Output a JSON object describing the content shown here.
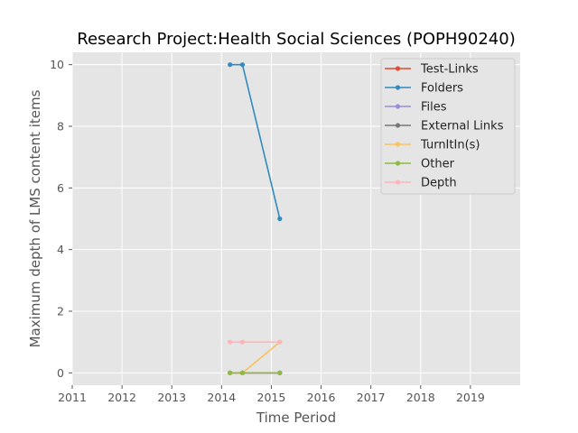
{
  "chart_data": {
    "type": "line",
    "title": "Research Project:Health Social Sciences (POPH90240)",
    "xlabel": "Time Period",
    "ylabel": "Maximum depth of LMS content items",
    "xlim": [
      2011,
      2020
    ],
    "ylim": [
      -0.4,
      10.4
    ],
    "xticks": [
      2011,
      2012,
      2013,
      2014,
      2015,
      2016,
      2017,
      2018,
      2019
    ],
    "yticks": [
      0,
      2,
      4,
      6,
      8,
      10
    ],
    "grid": true,
    "legend_position": "top-right",
    "x": [
      2014.17,
      2014.42,
      2015.17
    ],
    "series": [
      {
        "name": "Test-Links",
        "color": "#e24a33",
        "values": [
          0,
          0,
          0
        ]
      },
      {
        "name": "Folders",
        "color": "#348abd",
        "values": [
          10,
          10,
          5
        ]
      },
      {
        "name": "Files",
        "color": "#988ed5",
        "values": [
          0,
          0,
          0
        ]
      },
      {
        "name": "External Links",
        "color": "#777777",
        "values": [
          0,
          0,
          0
        ]
      },
      {
        "name": "TurnItIn(s)",
        "color": "#fbc15e",
        "values": [
          0,
          0,
          1
        ]
      },
      {
        "name": "Other",
        "color": "#8eba42",
        "values": [
          0,
          0,
          0
        ]
      },
      {
        "name": "Depth",
        "color": "#ffb5b8",
        "values": [
          1,
          1,
          1
        ]
      }
    ]
  }
}
